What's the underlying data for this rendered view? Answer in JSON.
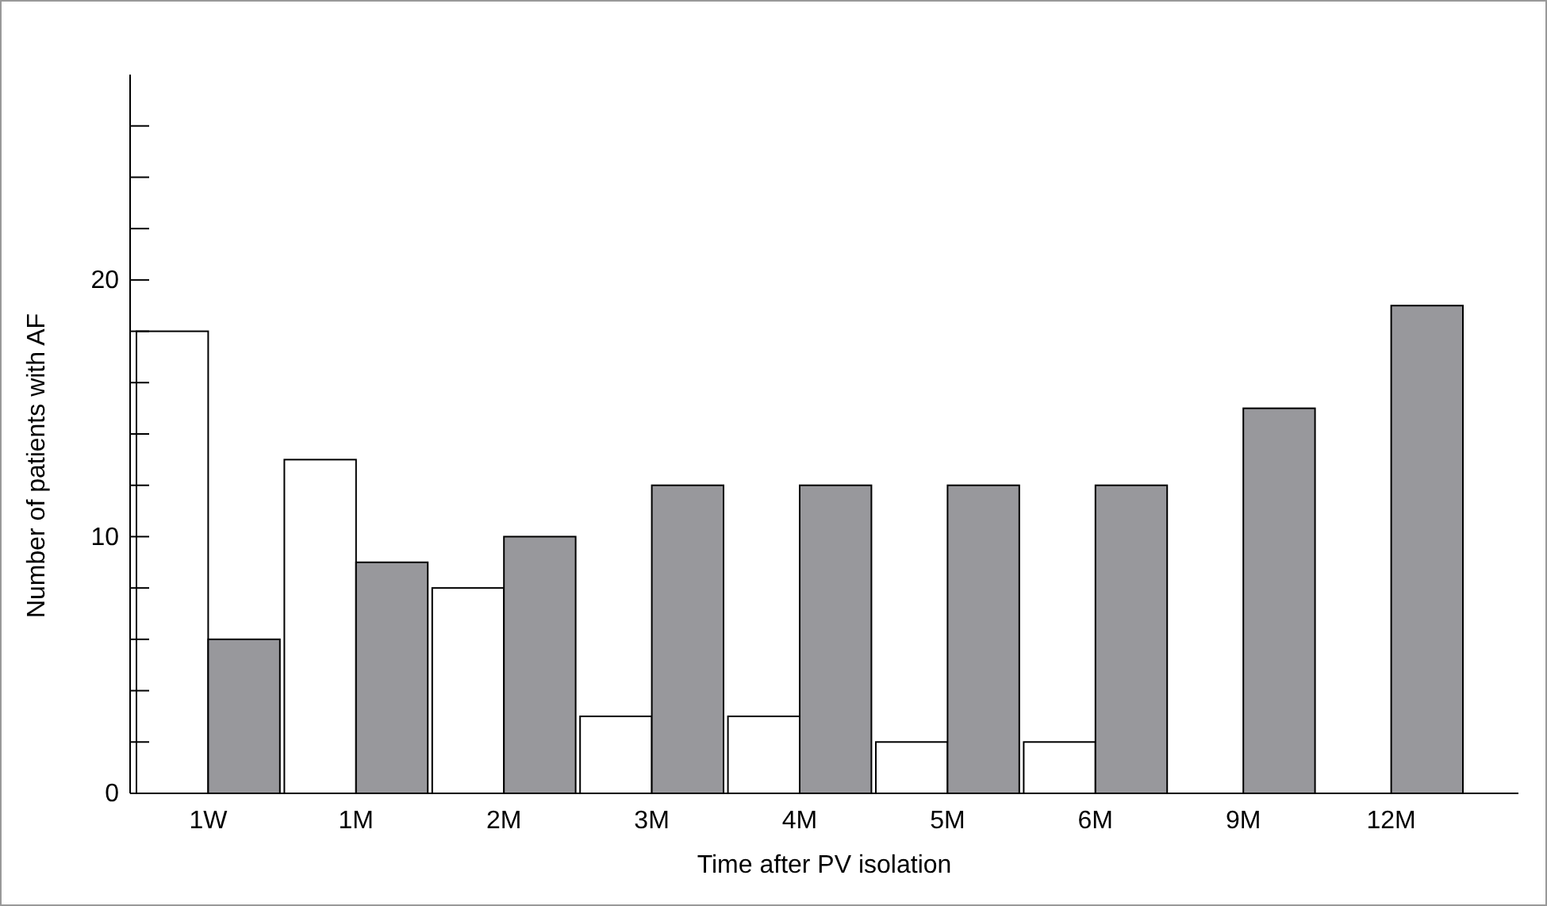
{
  "chart_data": {
    "type": "bar",
    "xlabel": "Time after PV isolation",
    "ylabel": "Number of patients with AF",
    "categories": [
      "1W",
      "1M",
      "2M",
      "3M",
      "4M",
      "5M",
      "6M",
      "9M",
      "12M"
    ],
    "series": [
      {
        "color": "#ffffff",
        "values": [
          18,
          13,
          8,
          3,
          3,
          2,
          2,
          0,
          0
        ]
      },
      {
        "color": "#98989c",
        "values": [
          6,
          9,
          10,
          12,
          12,
          12,
          12,
          15,
          19
        ]
      }
    ],
    "ylim": [
      0,
      28
    ],
    "yticks": [
      0,
      {
        "value": 2,
        "label": null
      },
      {
        "value": 4,
        "label": null
      },
      {
        "value": 6,
        "label": null
      },
      {
        "value": 8,
        "label": null
      },
      10,
      {
        "value": 12,
        "label": null
      },
      {
        "value": 14,
        "label": null
      },
      {
        "value": 16,
        "label": null
      },
      {
        "value": 18,
        "label": null
      },
      20,
      {
        "value": 22,
        "label": null
      },
      {
        "value": 24,
        "label": null
      },
      {
        "value": 26,
        "label": null
      }
    ],
    "grid": false
  }
}
